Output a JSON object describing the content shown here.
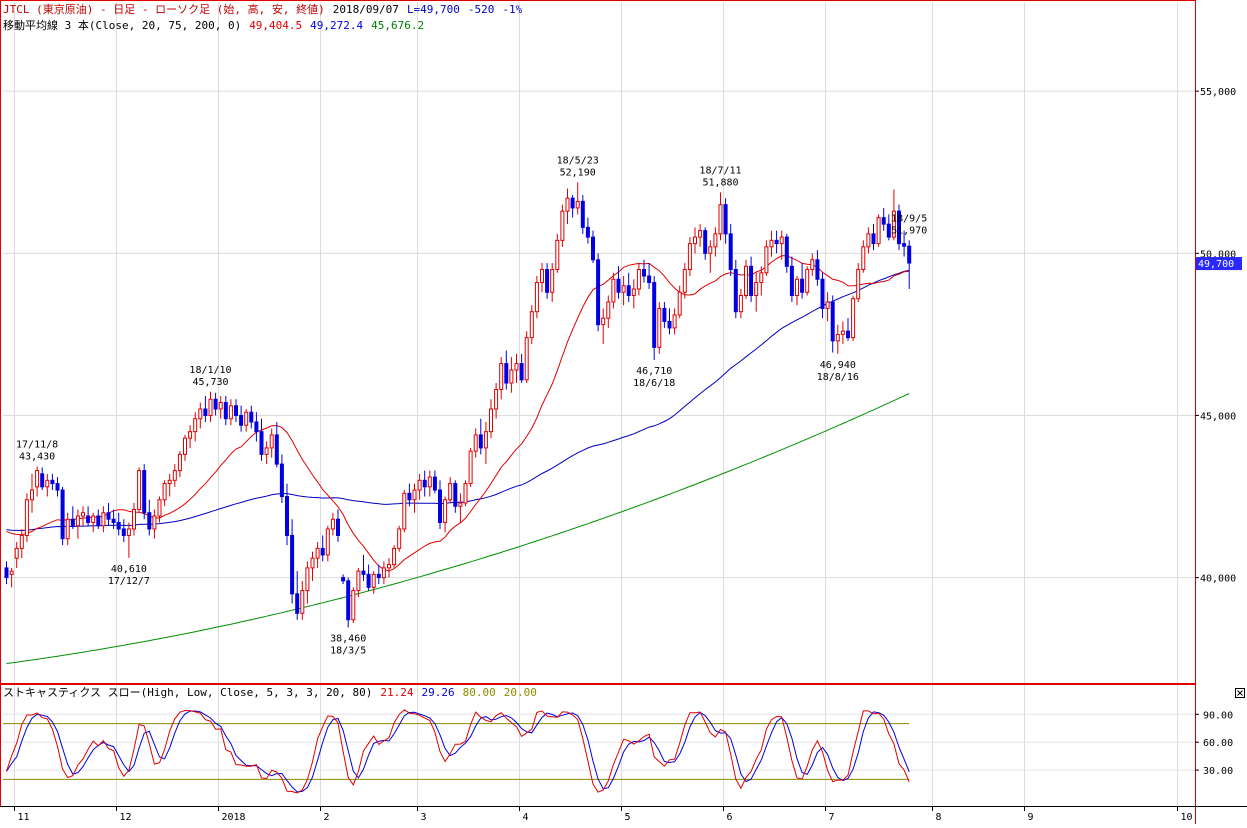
{
  "header": {
    "line1": [
      {
        "text": "JTCL (東京原油) - 日足 - ローソク足 (始, 高, 安, 終値)",
        "color": "#c00000"
      },
      {
        "text": "2018/09/07",
        "color": "#000000"
      },
      {
        "text": "L=49,700",
        "color": "#0000c8"
      },
      {
        "text": "-520",
        "color": "#0000c8"
      },
      {
        "text": "-1%",
        "color": "#0000c8"
      }
    ],
    "line2": [
      {
        "text": "移動平均線 3 本(Close, 20, 75, 200, 0)",
        "color": "#000000"
      },
      {
        "text": "49,404.5",
        "color": "#e00000"
      },
      {
        "text": "49,272.4",
        "color": "#0000e0"
      },
      {
        "text": "45,676.2",
        "color": "#008000"
      }
    ]
  },
  "colors": {
    "up": "#e00000",
    "down": "#0000e0",
    "ma20": "#e00000",
    "ma75": "#0000c0",
    "ma200": "#009000",
    "stoch_k": "#e00000",
    "stoch_d": "#0000e0",
    "stoch_ref": "#8a8a00",
    "last_bg": "#2828ff",
    "frame": "#e00000"
  },
  "price_axis": {
    "ticks": [
      {
        "v": 55000,
        "label": "55,000"
      },
      {
        "v": 50000,
        "label": "50,000"
      },
      {
        "v": 45000,
        "label": "45,000"
      },
      {
        "v": 40000,
        "label": "40,000"
      }
    ],
    "last_label": "49,700"
  },
  "stoch_axis": {
    "ticks": [
      {
        "v": 90,
        "label": "90.00"
      },
      {
        "v": 60,
        "label": "60.00"
      },
      {
        "v": 30,
        "label": "30.00"
      }
    ]
  },
  "stoch_title": [
    {
      "text": "ストキャスティクス スロー(High, Low, Close, 5, 3, 3, 20, 80)",
      "color": "#000000"
    },
    {
      "text": "21.24",
      "color": "#e00000"
    },
    {
      "text": "29.26",
      "color": "#0000e0"
    },
    {
      "text": "80.00",
      "color": "#8a8a00"
    },
    {
      "text": "20.00",
      "color": "#8a8a00"
    }
  ],
  "x_axis": {
    "labels": [
      {
        "i": 2,
        "label": "11"
      },
      {
        "i": 22,
        "label": "12"
      },
      {
        "i": 42,
        "label": "2018"
      },
      {
        "i": 62,
        "label": "2"
      },
      {
        "i": 81,
        "label": "3"
      },
      {
        "i": 101,
        "label": "4"
      },
      {
        "i": 121,
        "label": "5"
      },
      {
        "i": 141,
        "label": "6"
      },
      {
        "i": 161,
        "label": "7"
      },
      {
        "i": 182,
        "label": "8"
      },
      {
        "i": 200,
        "label": "9"
      },
      {
        "i": 230,
        "label": "10"
      }
    ]
  },
  "chart_data": {
    "type": "candlestick",
    "title": "JTCL (東京原油) - 日足 - ローソク足 (始, 高, 安, 終値)",
    "period": "daily",
    "last": {
      "date": "2018/09/07",
      "close": 49700,
      "change": -520,
      "change_pct": "-1%"
    },
    "y_range": [
      36750,
      57750
    ],
    "candles": [
      [
        40300,
        40500,
        39800,
        40000
      ],
      [
        40100,
        40300,
        39700,
        40200
      ],
      [
        40600,
        41100,
        40300,
        40900
      ],
      [
        40900,
        41500,
        40600,
        41300
      ],
      [
        41300,
        42600,
        41100,
        42400
      ],
      [
        42400,
        43200,
        42000,
        42700
      ],
      [
        42800,
        43430,
        42500,
        43300
      ],
      [
        43200,
        43400,
        42700,
        42800
      ],
      [
        42800,
        43200,
        42500,
        43000
      ],
      [
        43000,
        43200,
        42700,
        42900
      ],
      [
        42900,
        43100,
        42500,
        42700
      ],
      [
        42700,
        42800,
        41000,
        41200
      ],
      [
        41200,
        42000,
        41000,
        41800
      ],
      [
        41800,
        42200,
        41500,
        41600
      ],
      [
        41600,
        42100,
        41200,
        41900
      ],
      [
        41900,
        42200,
        41600,
        42000
      ],
      [
        41900,
        42200,
        41600,
        41700
      ],
      [
        41700,
        42000,
        41400,
        41900
      ],
      [
        41900,
        42100,
        41500,
        41600
      ],
      [
        41600,
        42200,
        41400,
        42000
      ],
      [
        42000,
        42300,
        41600,
        41800
      ],
      [
        41800,
        42100,
        41500,
        41700
      ],
      [
        41700,
        42000,
        41300,
        41500
      ],
      [
        41500,
        41800,
        41100,
        41300
      ],
      [
        41300,
        41700,
        40610,
        41500
      ],
      [
        41500,
        42300,
        41300,
        42100
      ],
      [
        42100,
        43400,
        42000,
        43300
      ],
      [
        43300,
        43500,
        41800,
        42000
      ],
      [
        42000,
        42400,
        41300,
        41500
      ],
      [
        41500,
        42100,
        41200,
        41900
      ],
      [
        41900,
        42500,
        41700,
        42400
      ],
      [
        42400,
        43000,
        42200,
        42900
      ],
      [
        42900,
        43200,
        42500,
        43000
      ],
      [
        43000,
        43500,
        42800,
        43300
      ],
      [
        43300,
        43900,
        43100,
        43800
      ],
      [
        43800,
        44400,
        43600,
        44300
      ],
      [
        44300,
        44700,
        44000,
        44500
      ],
      [
        44500,
        45100,
        44200,
        44900
      ],
      [
        44900,
        45400,
        44600,
        45200
      ],
      [
        45200,
        45600,
        44800,
        45000
      ],
      [
        45000,
        45730,
        44800,
        45500
      ],
      [
        45500,
        45700,
        45000,
        45200
      ],
      [
        45200,
        45600,
        44900,
        45400
      ],
      [
        45400,
        45600,
        44700,
        44900
      ],
      [
        44900,
        45500,
        44700,
        45300
      ],
      [
        45300,
        45500,
        44800,
        45000
      ],
      [
        45000,
        45300,
        44500,
        44700
      ],
      [
        44700,
        45200,
        44500,
        45100
      ],
      [
        45100,
        45300,
        44600,
        44800
      ],
      [
        44800,
        45100,
        44200,
        44500
      ],
      [
        44500,
        44900,
        43600,
        43800
      ],
      [
        43800,
        44200,
        43500,
        44000
      ],
      [
        44000,
        44600,
        43700,
        44400
      ],
      [
        44400,
        44800,
        43400,
        43500
      ],
      [
        43500,
        43800,
        42300,
        42500
      ],
      [
        42500,
        42900,
        41000,
        41300
      ],
      [
        41300,
        41800,
        39200,
        39500
      ],
      [
        39500,
        40200,
        38700,
        38900
      ],
      [
        38900,
        39900,
        38700,
        39600
      ],
      [
        39600,
        40500,
        39200,
        40300
      ],
      [
        40300,
        40800,
        39900,
        40600
      ],
      [
        40600,
        41100,
        40300,
        40900
      ],
      [
        40900,
        41300,
        40500,
        40700
      ],
      [
        40700,
        41600,
        40500,
        41500
      ],
      [
        41500,
        42000,
        41300,
        41800
      ],
      [
        41800,
        42100,
        41100,
        41300
      ],
      [
        40000,
        40100,
        39800,
        39900
      ],
      [
        39900,
        40000,
        38460,
        38700
      ],
      [
        38700,
        39700,
        38600,
        39600
      ],
      [
        39600,
        40300,
        39400,
        40200
      ],
      [
        40200,
        40700,
        39900,
        40100
      ],
      [
        40100,
        40400,
        39600,
        39700
      ],
      [
        39700,
        40200,
        39500,
        40100
      ],
      [
        40100,
        40400,
        39800,
        40000
      ],
      [
        40000,
        40500,
        39800,
        40300
      ],
      [
        40300,
        40600,
        40000,
        40400
      ],
      [
        40400,
        41000,
        40300,
        40900
      ],
      [
        40900,
        41600,
        40800,
        41500
      ],
      [
        41500,
        42700,
        41400,
        42600
      ],
      [
        42600,
        42900,
        42200,
        42400
      ],
      [
        42400,
        42900,
        42000,
        42700
      ],
      [
        42700,
        43200,
        42400,
        43000
      ],
      [
        43000,
        43300,
        42500,
        42800
      ],
      [
        42800,
        43300,
        42500,
        43100
      ],
      [
        43100,
        43300,
        42600,
        42700
      ],
      [
        42700,
        43000,
        41500,
        41700
      ],
      [
        41700,
        42500,
        41400,
        42400
      ],
      [
        42400,
        43100,
        42300,
        42900
      ],
      [
        42900,
        43000,
        42000,
        42200
      ],
      [
        42200,
        42600,
        41700,
        42300
      ],
      [
        42300,
        43000,
        42200,
        42900
      ],
      [
        42900,
        44000,
        42800,
        43900
      ],
      [
        43900,
        44600,
        43700,
        44400
      ],
      [
        44400,
        44900,
        43800,
        44000
      ],
      [
        44000,
        44800,
        43500,
        44500
      ],
      [
        44500,
        45500,
        44300,
        45200
      ],
      [
        45200,
        46000,
        44900,
        45800
      ],
      [
        45800,
        46800,
        45500,
        46600
      ],
      [
        46600,
        47000,
        45800,
        46000
      ],
      [
        46000,
        46800,
        45700,
        46400
      ],
      [
        46400,
        46900,
        46000,
        46600
      ],
      [
        46600,
        46900,
        46000,
        46100
      ],
      [
        46100,
        47600,
        46000,
        47400
      ],
      [
        47400,
        48400,
        47200,
        48200
      ],
      [
        48200,
        49300,
        48000,
        49100
      ],
      [
        49100,
        49700,
        48800,
        49500
      ],
      [
        49500,
        49700,
        48600,
        48800
      ],
      [
        48800,
        49700,
        48500,
        49500
      ],
      [
        49500,
        50600,
        49400,
        50400
      ],
      [
        50400,
        51500,
        50200,
        51300
      ],
      [
        51300,
        52000,
        50900,
        51700
      ],
      [
        51700,
        51800,
        51100,
        51400
      ],
      [
        51400,
        52190,
        51200,
        51600
      ],
      [
        51600,
        51800,
        50600,
        50800
      ],
      [
        50800,
        51100,
        50300,
        50500
      ],
      [
        50500,
        50700,
        49700,
        49800
      ],
      [
        49800,
        50000,
        47600,
        47800
      ],
      [
        47800,
        48300,
        47200,
        48000
      ],
      [
        48000,
        48700,
        47700,
        48500
      ],
      [
        48500,
        49400,
        48300,
        49200
      ],
      [
        49200,
        49600,
        48600,
        48800
      ],
      [
        48800,
        49300,
        48400,
        49000
      ],
      [
        49000,
        49400,
        48500,
        48700
      ],
      [
        48700,
        49200,
        48300,
        48900
      ],
      [
        48900,
        49700,
        48700,
        49500
      ],
      [
        49500,
        49800,
        49100,
        49300
      ],
      [
        49300,
        49700,
        48900,
        49100
      ],
      [
        49100,
        49300,
        46710,
        47100
      ],
      [
        47100,
        48500,
        46900,
        48300
      ],
      [
        48300,
        48500,
        47700,
        47900
      ],
      [
        47900,
        48300,
        47500,
        47700
      ],
      [
        47700,
        48300,
        47500,
        48100
      ],
      [
        48100,
        49000,
        48000,
        48800
      ],
      [
        48800,
        49700,
        48600,
        49500
      ],
      [
        49500,
        50500,
        49300,
        50300
      ],
      [
        50300,
        50800,
        50000,
        50500
      ],
      [
        50500,
        50900,
        50200,
        50700
      ],
      [
        50700,
        50800,
        49800,
        50000
      ],
      [
        50000,
        50400,
        49400,
        50200
      ],
      [
        50200,
        50800,
        49900,
        50600
      ],
      [
        50600,
        51880,
        50400,
        51500
      ],
      [
        51500,
        51700,
        50300,
        50600
      ],
      [
        50600,
        50900,
        49300,
        49500
      ],
      [
        49500,
        49800,
        48000,
        48200
      ],
      [
        48200,
        48900,
        48000,
        48700
      ],
      [
        48700,
        49800,
        48600,
        49600
      ],
      [
        49600,
        49900,
        48500,
        48700
      ],
      [
        48700,
        49400,
        48200,
        49100
      ],
      [
        49100,
        49600,
        48700,
        49400
      ],
      [
        49400,
        50400,
        49300,
        50200
      ],
      [
        50200,
        50700,
        49900,
        50400
      ],
      [
        50400,
        50700,
        50000,
        50300
      ],
      [
        50300,
        50700,
        49800,
        50500
      ],
      [
        50500,
        50600,
        49400,
        49600
      ],
      [
        49600,
        49900,
        48500,
        48700
      ],
      [
        48700,
        49300,
        48400,
        49200
      ],
      [
        49200,
        49700,
        48600,
        48800
      ],
      [
        48800,
        49600,
        48700,
        49500
      ],
      [
        49500,
        50000,
        49300,
        49800
      ],
      [
        49800,
        50100,
        49000,
        49200
      ],
      [
        49200,
        49400,
        48000,
        48300
      ],
      [
        48300,
        48800,
        47900,
        48500
      ],
      [
        48500,
        48700,
        46940,
        47300
      ],
      [
        47300,
        47800,
        46900,
        47500
      ],
      [
        47500,
        47900,
        47200,
        47600
      ],
      [
        47600,
        48000,
        47300,
        47400
      ],
      [
        47400,
        48700,
        47300,
        48600
      ],
      [
        48600,
        49700,
        48500,
        49500
      ],
      [
        49500,
        50400,
        49400,
        50200
      ],
      [
        50200,
        50800,
        50000,
        50600
      ],
      [
        50600,
        50900,
        50100,
        50300
      ],
      [
        50300,
        51200,
        50200,
        51100
      ],
      [
        51100,
        51400,
        50700,
        50900
      ],
      [
        50900,
        51200,
        50400,
        50500
      ],
      [
        50500,
        51970,
        50400,
        51300
      ],
      [
        51300,
        51500,
        50100,
        50300
      ],
      [
        50300,
        50700,
        49900,
        50220
      ],
      [
        50220,
        50400,
        48900,
        49700
      ]
    ],
    "moving_averages": [
      {
        "name": "20",
        "period": 20
      },
      {
        "name": "75",
        "period": 75
      },
      {
        "name": "200",
        "period": 200,
        "first": 37350,
        "last": 45676.2
      }
    ],
    "annotations": [
      {
        "i": 6,
        "kind": "high",
        "date": "17/11/8",
        "value": "43,430"
      },
      {
        "i": 24,
        "kind": "low",
        "value": "40,610",
        "date": "17/12/7"
      },
      {
        "i": 40,
        "kind": "high",
        "date": "18/1/10",
        "value": "45,730"
      },
      {
        "i": 67,
        "kind": "low",
        "value": "38,460",
        "date": "18/3/5"
      },
      {
        "i": 112,
        "kind": "high",
        "date": "18/5/23",
        "value": "52,190"
      },
      {
        "i": 127,
        "kind": "low",
        "value": "46,710",
        "date": "18/6/18"
      },
      {
        "i": 140,
        "kind": "high",
        "date": "18/7/11",
        "value": "51,880"
      },
      {
        "i": 163,
        "kind": "low",
        "value": "46,940",
        "date": "18/8/16"
      },
      {
        "i": 177,
        "kind": "high",
        "date": "18/9/5",
        "value": "51,970"
      }
    ],
    "stochastic": {
      "name": "ストキャスティクス スロー",
      "params": [
        5,
        3,
        3,
        20,
        80
      ],
      "y_range": [
        0,
        100
      ],
      "k_last": 21.24,
      "d_last": 29.26,
      "levels": [
        80,
        20
      ]
    }
  }
}
